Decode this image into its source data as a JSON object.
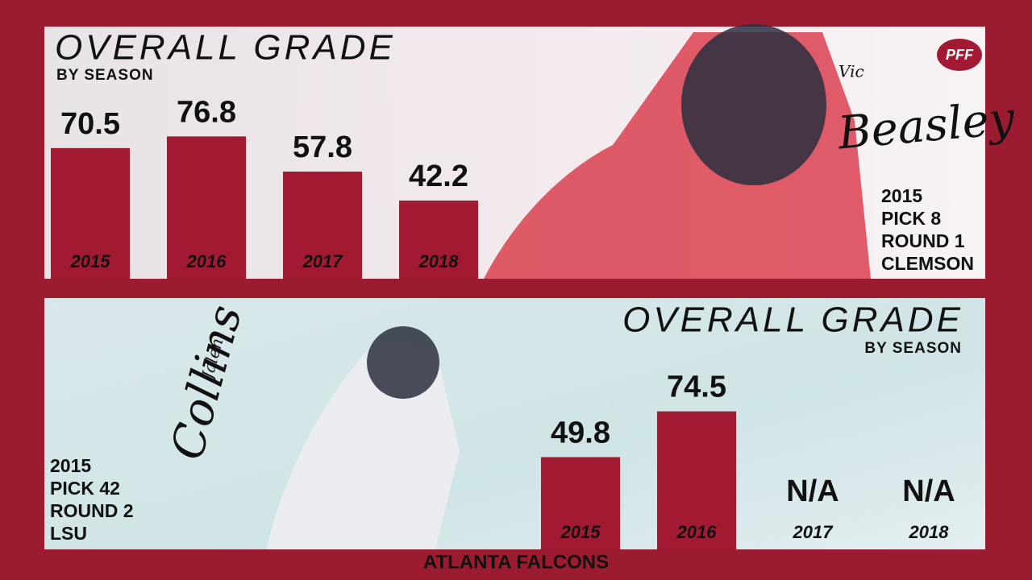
{
  "logo": "PFF",
  "footer": "ATLANTA FALCONS",
  "chart_data": [
    {
      "type": "bar",
      "title": "OVERALL GRADE",
      "subtitle": "BY SEASON",
      "player_first": "Vic",
      "player_last": "Beasley",
      "draft_info": [
        "2015",
        "PICK 8",
        "ROUND 1",
        "CLEMSON"
      ],
      "categories": [
        "2015",
        "2016",
        "2017",
        "2018"
      ],
      "values": [
        70.5,
        76.8,
        57.8,
        42.2
      ],
      "color": "#a11a32",
      "ylim": [
        0,
        100
      ]
    },
    {
      "type": "bar",
      "title": "OVERALL GRADE",
      "subtitle": "BY SEASON",
      "player_first": "Jalen",
      "player_last": "Collins",
      "draft_info": [
        "2015",
        "PICK 42",
        "ROUND 2",
        "LSU"
      ],
      "categories": [
        "2015",
        "2016",
        "2017",
        "2018"
      ],
      "values": [
        49.8,
        74.5,
        null,
        null
      ],
      "value_labels": [
        "49.8",
        "74.5",
        "N/A",
        "N/A"
      ],
      "color": "#a11a32",
      "ylim": [
        0,
        100
      ]
    }
  ]
}
